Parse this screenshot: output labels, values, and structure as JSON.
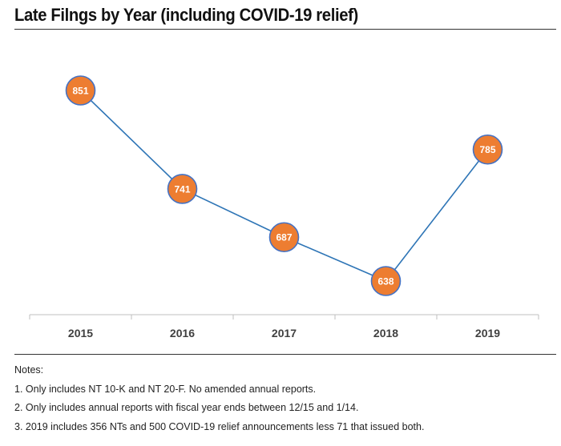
{
  "title": "Late Filngs by Year (including COVID-19 relief)",
  "colors": {
    "line": "#2e75b6",
    "marker_fill": "#ed7d31",
    "marker_stroke": "#4472c4",
    "axis": "#bfbfbf"
  },
  "notes": {
    "heading": "Notes:",
    "items": [
      "1. Only includes NT 10-K and NT 20-F. No amended annual reports.",
      "2. Only includes annual reports with fiscal year ends between 12/15 and 1/14.",
      "3. 2019 includes 356 NTs and 500 COVID-19 relief announcements less 71 that issued both."
    ]
  },
  "chart_data": {
    "type": "line",
    "title": "Late Filngs by Year (including COVID-19 relief)",
    "categories": [
      "2015",
      "2016",
      "2017",
      "2018",
      "2019"
    ],
    "series": [
      {
        "values": [
          851,
          741,
          687,
          638,
          785
        ]
      }
    ],
    "data_labels": true,
    "grid": false,
    "legend": "none"
  }
}
